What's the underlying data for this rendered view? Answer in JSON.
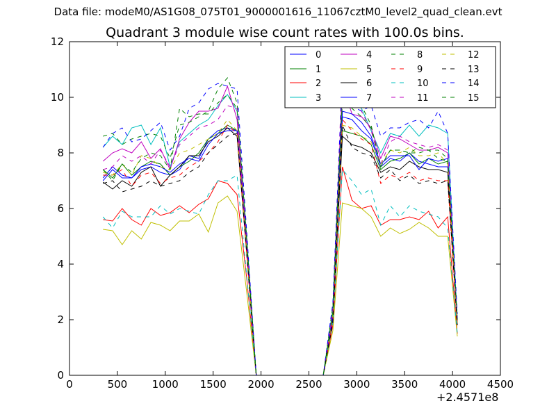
{
  "suptitle": "Data file: modeM0/AS1G08_075T01_9000001616_11067cztM0_level2_quad_clean.evt",
  "chart_data": {
    "type": "line",
    "title": "Quadrant 3 module wise count rates with 100.0s bins.",
    "xlabel": "",
    "ylabel": "",
    "x_offset_label": "+2.4571e8",
    "xlim": [
      0,
      4500
    ],
    "ylim": [
      0,
      12
    ],
    "xticks": [
      0,
      500,
      1000,
      1500,
      2000,
      2500,
      3000,
      3500,
      4000,
      4500
    ],
    "yticks": [
      0,
      2,
      4,
      6,
      8,
      10,
      12
    ],
    "legend_position": "top-right",
    "legend_columns": 4,
    "x": [
      350,
      450,
      550,
      650,
      750,
      850,
      950,
      1050,
      1150,
      1250,
      1350,
      1450,
      1550,
      1650,
      1750,
      1850,
      1950,
      2050,
      2150,
      2250,
      2350,
      2450,
      2550,
      2650,
      2750,
      2850,
      2950,
      3050,
      3150,
      3250,
      3350,
      3450,
      3550,
      3650,
      3750,
      3850,
      3950,
      4050
    ],
    "series": [
      {
        "name": "0",
        "color": "#0000ff",
        "dash": "solid",
        "values": [
          7.1,
          7.5,
          7.2,
          7.1,
          7.4,
          7.5,
          7.3,
          7.2,
          7.4,
          7.9,
          7.8,
          8.5,
          8.8,
          8.9,
          8.8,
          4.5,
          0,
          0,
          0,
          0,
          0,
          0,
          0,
          0,
          2.2,
          9.3,
          9.2,
          8.8,
          8.5,
          7.5,
          7.8,
          7.7,
          8.0,
          7.7,
          7.6,
          7.5,
          7.5,
          2.0
        ]
      },
      {
        "name": "1",
        "color": "#008000",
        "dash": "solid",
        "values": [
          7.4,
          7.1,
          7.6,
          7.2,
          7.5,
          7.7,
          7.6,
          7.2,
          7.5,
          7.7,
          8.0,
          8.5,
          8.7,
          9.0,
          8.8,
          4.5,
          0,
          0,
          0,
          0,
          0,
          0,
          0,
          0,
          2.1,
          8.8,
          8.7,
          8.6,
          8.3,
          7.4,
          7.7,
          7.8,
          8.0,
          7.6,
          7.8,
          7.6,
          7.7,
          1.9
        ]
      },
      {
        "name": "2",
        "color": "#ff0000",
        "dash": "solid",
        "values": [
          5.6,
          5.55,
          6.0,
          5.6,
          5.4,
          6.0,
          5.75,
          5.85,
          6.1,
          5.85,
          6.15,
          6.35,
          7.0,
          6.9,
          6.5,
          3.5,
          0,
          0,
          0,
          0,
          0,
          0,
          0,
          0,
          1.8,
          7.5,
          6.3,
          6.0,
          6.1,
          5.4,
          5.6,
          5.6,
          5.7,
          5.6,
          5.9,
          5.3,
          5.7,
          1.5
        ]
      },
      {
        "name": "3",
        "color": "#00bfbf",
        "dash": "solid",
        "values": [
          8.2,
          8.6,
          8.3,
          8.9,
          9.0,
          8.3,
          8.9,
          7.5,
          8.4,
          8.7,
          9.0,
          9.2,
          9.7,
          10.1,
          9.5,
          5.0,
          0,
          0,
          0,
          0,
          0,
          0,
          0,
          0,
          2.4,
          10.3,
          9.8,
          9.6,
          8.8,
          8.0,
          8.7,
          8.6,
          9.0,
          8.6,
          9.0,
          8.9,
          8.7,
          2.0
        ]
      },
      {
        "name": "4",
        "color": "#bf00bf",
        "dash": "solid",
        "values": [
          7.7,
          8.0,
          8.15,
          8.0,
          8.4,
          7.8,
          8.15,
          7.4,
          8.5,
          9.1,
          9.5,
          9.5,
          9.6,
          10.4,
          9.2,
          4.8,
          0,
          0,
          0,
          0,
          0,
          0,
          0,
          0,
          2.3,
          10.5,
          9.4,
          9.3,
          8.9,
          7.8,
          8.6,
          8.5,
          8.3,
          8.1,
          8.1,
          8.2,
          8.0,
          1.9
        ]
      },
      {
        "name": "5",
        "color": "#bfbf00",
        "dash": "solid",
        "values": [
          5.25,
          5.2,
          4.7,
          5.2,
          4.9,
          5.5,
          5.4,
          5.2,
          5.55,
          5.55,
          5.8,
          5.15,
          6.2,
          6.45,
          5.9,
          3.0,
          0,
          0,
          0,
          0,
          0,
          0,
          0,
          0,
          1.6,
          6.2,
          6.1,
          6.0,
          5.7,
          5.0,
          5.3,
          5.1,
          5.25,
          5.5,
          5.3,
          5.0,
          5.0,
          1.4
        ]
      },
      {
        "name": "6",
        "color": "#000000",
        "dash": "solid",
        "values": [
          6.95,
          6.7,
          7.0,
          6.8,
          7.3,
          7.5,
          6.8,
          7.2,
          7.5,
          7.9,
          7.9,
          8.4,
          8.6,
          8.9,
          8.6,
          4.4,
          0,
          0,
          0,
          0,
          0,
          0,
          0,
          0,
          2.0,
          8.6,
          8.3,
          8.2,
          8.0,
          7.3,
          7.5,
          7.4,
          7.7,
          7.5,
          7.4,
          7.4,
          7.3,
          1.8
        ]
      },
      {
        "name": "7",
        "color": "#0000ff",
        "dash": "solid",
        "values": [
          7.0,
          7.4,
          7.1,
          7.1,
          7.5,
          7.6,
          7.5,
          7.3,
          7.6,
          7.8,
          7.7,
          8.3,
          8.7,
          8.8,
          8.8,
          4.5,
          0,
          0,
          0,
          0,
          0,
          0,
          0,
          0,
          2.1,
          9.5,
          9.4,
          9.1,
          8.6,
          7.6,
          7.9,
          7.9,
          7.9,
          7.4,
          7.8,
          7.7,
          7.8,
          2.0
        ]
      },
      {
        "name": "8",
        "color": "#008000",
        "dash": "dashed",
        "values": [
          8.6,
          8.7,
          8.3,
          8.5,
          8.6,
          8.7,
          8.6,
          7.8,
          9.0,
          9.1,
          9.3,
          9.5,
          10.3,
          10.7,
          9.8,
          5.0,
          0,
          0,
          0,
          0,
          0,
          0,
          0,
          0,
          2.5,
          9.9,
          9.6,
          9.3,
          8.9,
          7.5,
          8.1,
          8.1,
          8.0,
          8.0,
          8.1,
          7.8,
          7.7,
          2.0
        ]
      },
      {
        "name": "9",
        "color": "#ff0000",
        "dash": "dashed",
        "values": [
          7.2,
          7.2,
          7.4,
          6.8,
          7.2,
          7.3,
          6.9,
          7.1,
          7.2,
          7.5,
          7.7,
          8.0,
          8.4,
          9.0,
          8.7,
          4.4,
          0,
          0,
          0,
          0,
          0,
          0,
          0,
          0,
          2.0,
          9.2,
          8.8,
          8.5,
          8.3,
          6.9,
          7.2,
          7.1,
          7.3,
          7.0,
          7.1,
          7.0,
          7.0,
          1.8
        ]
      },
      {
        "name": "10",
        "color": "#00bfbf",
        "dash": "dashed",
        "values": [
          5.7,
          5.3,
          5.9,
          5.7,
          5.7,
          5.7,
          6.1,
          5.8,
          6.0,
          5.9,
          5.8,
          6.5,
          7.0,
          7.0,
          7.2,
          3.6,
          0,
          0,
          0,
          0,
          0,
          0,
          0,
          0,
          1.9,
          7.4,
          7.0,
          6.5,
          6.7,
          5.4,
          6.1,
          5.7,
          6.1,
          5.9,
          5.8,
          5.7,
          5.3,
          1.5
        ]
      },
      {
        "name": "11",
        "color": "#bf00bf",
        "dash": "dashed",
        "values": [
          7.4,
          7.5,
          7.9,
          7.7,
          7.9,
          7.6,
          8.1,
          7.5,
          8.3,
          8.6,
          8.9,
          9.0,
          9.2,
          9.7,
          9.6,
          4.8,
          0,
          0,
          0,
          0,
          0,
          0,
          0,
          0,
          2.3,
          11.1,
          10.5,
          9.5,
          8.8,
          7.6,
          8.4,
          8.6,
          8.4,
          8.3,
          8.2,
          8.3,
          8.1,
          1.9
        ]
      },
      {
        "name": "12",
        "color": "#bfbf00",
        "dash": "dashed",
        "values": [
          7.3,
          7.2,
          7.6,
          7.2,
          7.9,
          7.8,
          7.5,
          7.4,
          8.0,
          8.1,
          8.3,
          8.5,
          8.7,
          9.2,
          8.8,
          4.5,
          0,
          0,
          0,
          0,
          0,
          0,
          0,
          0,
          2.2,
          9.0,
          8.9,
          8.6,
          8.4,
          7.6,
          8.1,
          8.0,
          8.2,
          7.9,
          7.9,
          8.0,
          7.6,
          1.9
        ]
      },
      {
        "name": "13",
        "color": "#000000",
        "dash": "dashed",
        "values": [
          6.9,
          7.0,
          6.6,
          6.7,
          6.8,
          7.0,
          6.8,
          6.9,
          7.0,
          7.3,
          7.5,
          8.0,
          8.3,
          8.6,
          8.7,
          4.4,
          0,
          0,
          0,
          0,
          0,
          0,
          0,
          0,
          1.9,
          9.0,
          8.2,
          8.0,
          7.9,
          7.1,
          7.4,
          7.0,
          7.2,
          6.9,
          7.0,
          6.9,
          7.0,
          1.8
        ]
      },
      {
        "name": "14",
        "color": "#0000ff",
        "dash": "dashed",
        "values": [
          8.2,
          8.7,
          8.9,
          8.4,
          8.5,
          8.8,
          9.1,
          8.1,
          8.6,
          9.6,
          9.8,
          10.3,
          10.5,
          10.4,
          10.3,
          5.2,
          0,
          0,
          0,
          0,
          0,
          0,
          0,
          0,
          2.6,
          10.8,
          9.7,
          9.5,
          9.7,
          8.6,
          8.9,
          8.9,
          9.1,
          9.2,
          8.9,
          9.5,
          8.7,
          2.2
        ]
      },
      {
        "name": "15",
        "color": "#008000",
        "dash": "dashed",
        "values": [
          7.4,
          7.0,
          7.6,
          7.3,
          7.8,
          8.0,
          7.9,
          7.4,
          9.6,
          9.3,
          9.4,
          9.4,
          9.8,
          10.1,
          9.6,
          4.9,
          0,
          0,
          0,
          0,
          0,
          0,
          0,
          0,
          2.3,
          10.1,
          9.9,
          9.7,
          9.0,
          7.5,
          8.1,
          8.1,
          8.0,
          8.2,
          8.1,
          8.1,
          7.8,
          2.0
        ]
      }
    ]
  }
}
